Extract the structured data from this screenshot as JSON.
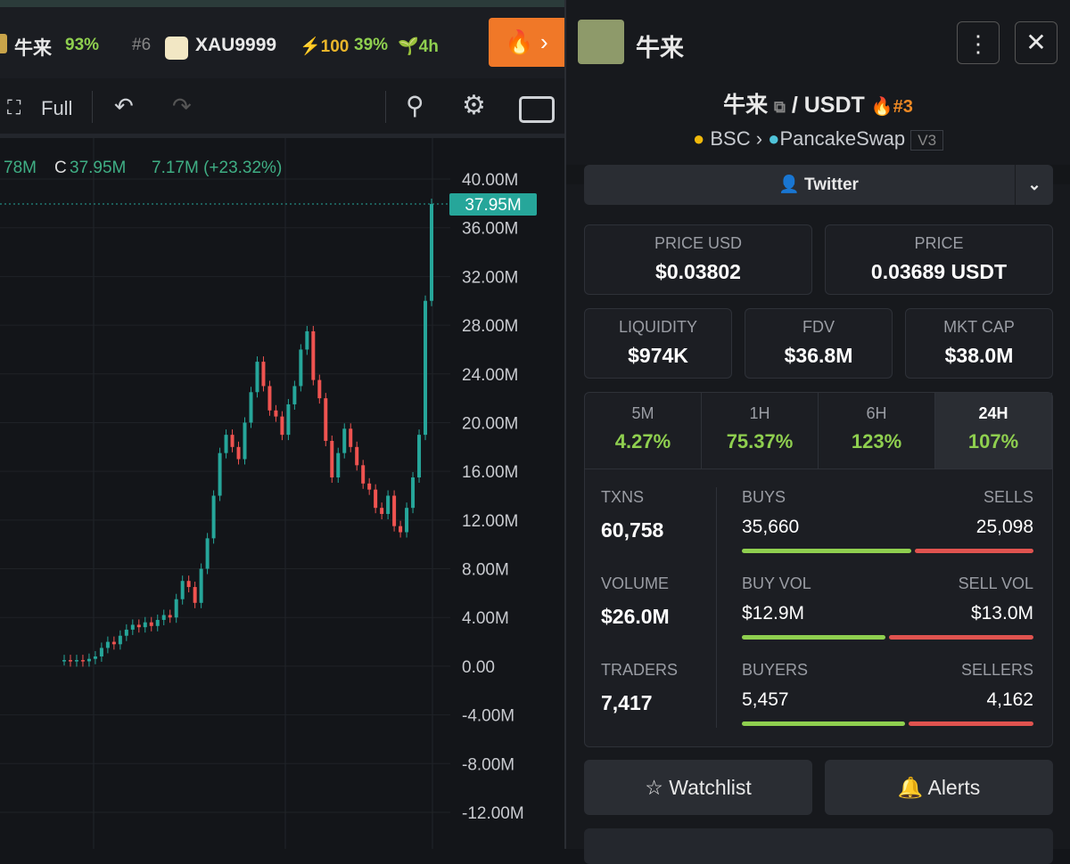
{
  "top_bar": {
    "tickers": [
      {
        "name": "牛来",
        "change": "93%"
      },
      {
        "rank": "#6",
        "name": "XAU9999",
        "boost": "100",
        "change": "39%",
        "age": "4h"
      }
    ]
  },
  "toolbar": {
    "fullscreen": "Full"
  },
  "chart": {
    "type": "candlestick",
    "legend": {
      "high": "78M",
      "close_prefix": "C",
      "close": "37.95M",
      "change": "7.17M (+23.32%)"
    },
    "last_price": {
      "value": 37.95,
      "label": "37.95M"
    },
    "ylim": [
      -15,
      43
    ],
    "yticks": [
      {
        "value": 40,
        "label": "40.00M"
      },
      {
        "value": 36,
        "label": "36.00M"
      },
      {
        "value": 32,
        "label": "32.00M"
      },
      {
        "value": 28,
        "label": "28.00M"
      },
      {
        "value": 24,
        "label": "24.00M"
      },
      {
        "value": 20,
        "label": "20.00M"
      },
      {
        "value": 16,
        "label": "16.00M"
      },
      {
        "value": 12,
        "label": "12.00M"
      },
      {
        "value": 8,
        "label": "8.00M"
      },
      {
        "value": 4,
        "label": "4.00M"
      },
      {
        "value": 0,
        "label": "0.00"
      },
      {
        "value": -4,
        "label": "-4.00M"
      },
      {
        "value": -8,
        "label": "-8.00M"
      },
      {
        "value": -12,
        "label": "-12.00M"
      }
    ],
    "closes": [
      0.5,
      0.4,
      0.5,
      0.4,
      0.6,
      0.8,
      1.5,
      2.0,
      1.8,
      2.5,
      3.0,
      3.4,
      3.2,
      3.6,
      3.3,
      3.8,
      4.2,
      4.0,
      5.5,
      7.0,
      6.5,
      5.2,
      8.0,
      10.5,
      14.0,
      17.5,
      19.0,
      18.0,
      17.0,
      20.0,
      22.5,
      25.0,
      23.0,
      21.0,
      20.5,
      19.0,
      21.5,
      23.0,
      26.0,
      27.5,
      23.5,
      22.0,
      18.5,
      15.5,
      17.5,
      19.5,
      18.0,
      16.5,
      15.0,
      14.5,
      13.0,
      12.5,
      14.0,
      11.5,
      11.0,
      13.0,
      15.5,
      19.0,
      30.0,
      37.95
    ]
  },
  "header": {
    "title": "牛来"
  },
  "pair": {
    "base": "牛来",
    "quote": "/ USDT",
    "rank": "#3",
    "chain": "BSC",
    "dex": "PancakeSwap",
    "version": "V3"
  },
  "twitter": "Twitter",
  "prices": [
    {
      "label": "PRICE USD",
      "value": "$0.03802"
    },
    {
      "label": "PRICE",
      "value": "0.03689 USDT"
    }
  ],
  "metrics": [
    {
      "label": "LIQUIDITY",
      "value": "$974K"
    },
    {
      "label": "FDV",
      "value": "$36.8M"
    },
    {
      "label": "MKT CAP",
      "value": "$38.0M"
    }
  ],
  "timeframes": [
    {
      "label": "5M",
      "change": "4.27%"
    },
    {
      "label": "1H",
      "change": "75.37%"
    },
    {
      "label": "6H",
      "change": "123%"
    },
    {
      "label": "24H",
      "change": "107%"
    }
  ],
  "stats": [
    {
      "label": "TXNS",
      "value": "60,758",
      "left": {
        "label": "BUYS",
        "value": 35660,
        "text": "35,660"
      },
      "right": {
        "label": "SELLS",
        "value": 25098,
        "text": "25,098"
      }
    },
    {
      "label": "VOLUME",
      "value": "$26.0M",
      "left": {
        "label": "BUY VOL",
        "value": 12.9,
        "text": "$12.9M"
      },
      "right": {
        "label": "SELL VOL",
        "value": 13.0,
        "text": "$13.0M"
      }
    },
    {
      "label": "TRADERS",
      "value": "7,417",
      "left": {
        "label": "BUYERS",
        "value": 5457,
        "text": "5,457"
      },
      "right": {
        "label": "SELLERS",
        "value": 4162,
        "text": "4,162"
      }
    }
  ],
  "actions": [
    "Watchlist",
    "Alerts"
  ]
}
